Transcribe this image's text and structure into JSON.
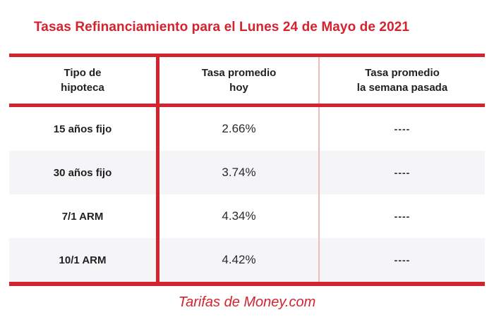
{
  "title": "Tasas Refinanciamiento para el Lunes 24 de Mayo de 2021",
  "table": {
    "headers": [
      {
        "line1": "Tipo de",
        "line2": "hipoteca"
      },
      {
        "line1": "Tasa promedio",
        "line2": "hoy"
      },
      {
        "line1": "Tasa promedio",
        "line2": "la semana pasada"
      }
    ],
    "rows": [
      {
        "type": "15 años fijo",
        "today": "2.66%",
        "last_week": "----"
      },
      {
        "type": "30 años fijo",
        "today": "3.74%",
        "last_week": "----"
      },
      {
        "type": "7/1 ARM",
        "today": "4.34%",
        "last_week": "----"
      },
      {
        "type": "10/1 ARM",
        "today": "4.42%",
        "last_week": "----"
      }
    ]
  },
  "footer": {
    "source": "Tarifas de Money.com"
  },
  "colors": {
    "accent_red": "#d2232e",
    "divider_pink": "#f2b8bc",
    "row_alt_bg": "#f5f5f7",
    "text": "#231f20"
  },
  "chart_data": {
    "type": "table",
    "title": "Tasas Refinanciamiento para el Lunes 24 de Mayo de 2021",
    "columns": [
      "Tipo de hipoteca",
      "Tasa promedio hoy",
      "Tasa promedio la semana pasada"
    ],
    "rows": [
      [
        "15 años fijo",
        "2.66%",
        "----"
      ],
      [
        "30 años fijo",
        "3.74%",
        "----"
      ],
      [
        "7/1 ARM",
        "4.34%",
        "----"
      ],
      [
        "10/1 ARM",
        "4.42%",
        "----"
      ]
    ],
    "today_rates_pct": [
      2.66,
      3.74,
      4.34,
      4.42
    ],
    "last_week_rates_pct": [
      null,
      null,
      null,
      null
    ],
    "source": "Tarifas de Money.com"
  }
}
